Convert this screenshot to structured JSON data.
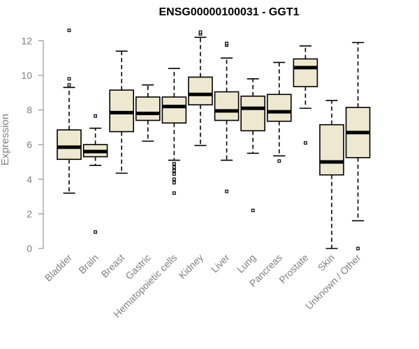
{
  "chart_data": {
    "type": "boxplot",
    "title": "ENSG00000100031 - GGT1",
    "xlabel": "",
    "ylabel": "Expression",
    "ylim": [
      0,
      12.5
    ],
    "yticks": [
      0,
      2,
      4,
      6,
      8,
      10,
      12
    ],
    "categories": [
      "Bladder",
      "Brain",
      "Breast",
      "Gastric",
      "Hematopoietic cells",
      "Kidney",
      "Liver",
      "Lung",
      "Pancreas",
      "Prostate",
      "Skin",
      "Unknown / Other"
    ],
    "boxes": [
      {
        "whisker_low": 3.2,
        "q1": 5.15,
        "median": 5.85,
        "q3": 6.85,
        "whisker_high": 9.3,
        "outliers": [
          9.45,
          9.8,
          12.6
        ]
      },
      {
        "whisker_low": 4.8,
        "q1": 5.3,
        "median": 5.6,
        "q3": 6.0,
        "whisker_high": 6.95,
        "outliers": [
          0.95,
          7.65
        ]
      },
      {
        "whisker_low": 4.35,
        "q1": 6.75,
        "median": 7.85,
        "q3": 9.15,
        "whisker_high": 11.4,
        "outliers": []
      },
      {
        "whisker_low": 6.2,
        "q1": 7.4,
        "median": 7.8,
        "q3": 8.75,
        "whisker_high": 9.45,
        "outliers": []
      },
      {
        "whisker_low": 5.1,
        "q1": 7.25,
        "median": 8.2,
        "q3": 8.75,
        "whisker_high": 10.4,
        "outliers": [
          3.2,
          3.8,
          4.0,
          4.3,
          4.5,
          4.7,
          4.9
        ]
      },
      {
        "whisker_low": 5.95,
        "q1": 8.3,
        "median": 8.9,
        "q3": 9.9,
        "whisker_high": 12.2,
        "outliers": [
          12.4,
          12.5
        ]
      },
      {
        "whisker_low": 5.1,
        "q1": 7.4,
        "median": 7.95,
        "q3": 9.05,
        "whisker_high": 11.0,
        "outliers": [
          3.3,
          11.75,
          11.85
        ]
      },
      {
        "whisker_low": 5.5,
        "q1": 6.8,
        "median": 8.1,
        "q3": 8.8,
        "whisker_high": 9.8,
        "outliers": [
          2.2
        ]
      },
      {
        "whisker_low": 5.35,
        "q1": 7.35,
        "median": 7.9,
        "q3": 8.9,
        "whisker_high": 10.75,
        "outliers": [
          5.05
        ]
      },
      {
        "whisker_low": 8.1,
        "q1": 9.35,
        "median": 10.45,
        "q3": 10.95,
        "whisker_high": 11.7,
        "outliers": [
          6.1
        ]
      },
      {
        "whisker_low": 0.0,
        "q1": 4.25,
        "median": 5.0,
        "q3": 7.15,
        "whisker_high": 8.55,
        "outliers": []
      },
      {
        "whisker_low": 1.6,
        "q1": 5.25,
        "median": 6.7,
        "q3": 8.15,
        "whisker_high": 11.9,
        "outliers": [
          0.0
        ]
      }
    ],
    "colors": {
      "box_fill": "#eee8d0",
      "stroke": "#000000",
      "axis": "#808080"
    }
  }
}
